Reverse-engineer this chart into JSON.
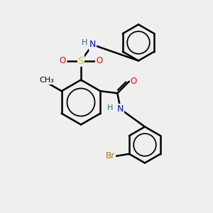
{
  "bg_color": "#efefef",
  "bond_color": "#000000",
  "bond_width": 1.8,
  "atom_colors": {
    "N": "#0000ff",
    "O": "#ff0000",
    "S": "#cccc00",
    "Br": "#cc6600",
    "H": "#008080",
    "C": "#000000"
  },
  "font_size": 8.5
}
